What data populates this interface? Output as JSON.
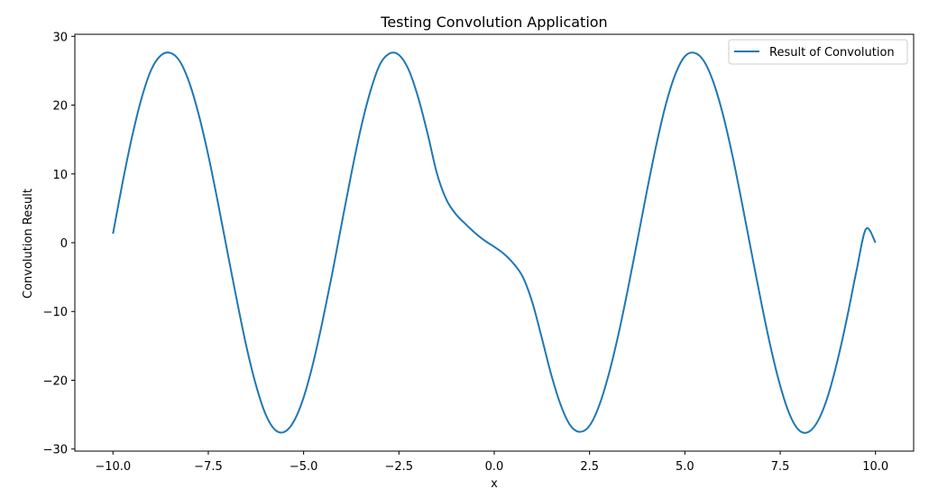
{
  "chart_data": {
    "type": "line",
    "title": "Testing Convolution Application",
    "xlabel": "x",
    "ylabel": "Convolution Result",
    "xlim": [
      -11,
      11
    ],
    "ylim": [
      -30.3,
      30.3
    ],
    "xticks": [
      -10.0,
      -7.5,
      -5.0,
      -2.5,
      0.0,
      2.5,
      5.0,
      7.5,
      10.0
    ],
    "xtick_labels": [
      "−10.0",
      "−7.5",
      "−5.0",
      "−2.5",
      "0.0",
      "2.5",
      "5.0",
      "7.5",
      "10.0"
    ],
    "yticks": [
      30,
      20,
      10,
      0,
      -10,
      -20,
      -30
    ],
    "ytick_labels": [
      "30",
      "20",
      "10",
      "0",
      "−10",
      "−20",
      "−30"
    ],
    "grid": false,
    "legend": {
      "position": "upper-right",
      "entries": [
        "Result of Convolution"
      ]
    },
    "series": [
      {
        "name": "Result of Convolution",
        "color": "#1f77b4",
        "x": [
          -10.0,
          -9.75,
          -9.5,
          -9.25,
          -9.0,
          -8.75,
          -8.5,
          -8.25,
          -8.0,
          -7.75,
          -7.5,
          -7.25,
          -7.0,
          -6.75,
          -6.5,
          -6.25,
          -6.0,
          -5.75,
          -5.5,
          -5.25,
          -5.0,
          -4.75,
          -4.5,
          -4.25,
          -4.0,
          -3.75,
          -3.5,
          -3.25,
          -3.0,
          -2.75,
          -2.5,
          -2.25,
          -2.0,
          -1.75,
          -1.5,
          -1.25,
          -1.0,
          -0.75,
          -0.5,
          -0.25,
          0.0,
          0.25,
          0.5,
          0.75,
          1.0,
          1.25,
          1.5,
          1.75,
          2.0,
          2.25,
          2.5,
          2.75,
          3.0,
          3.25,
          3.5,
          3.75,
          4.0,
          4.25,
          4.5,
          4.75,
          5.0,
          5.25,
          5.5,
          5.75,
          6.0,
          6.25,
          6.5,
          6.75,
          7.0,
          7.25,
          7.5,
          7.75,
          8.0,
          8.25,
          8.5,
          8.75,
          9.0,
          9.25,
          9.5,
          9.75,
          10.0
        ],
        "y": [
          1.3,
          8.7,
          15.4,
          21.0,
          25.1,
          27.2,
          27.6,
          26.4,
          23.3,
          18.6,
          12.7,
          5.9,
          -1.3,
          -8.4,
          -15.1,
          -20.7,
          -24.9,
          -27.2,
          -27.5,
          -25.9,
          -22.5,
          -17.5,
          -11.3,
          -4.5,
          2.8,
          10.0,
          16.6,
          22.0,
          25.9,
          27.5,
          27.3,
          25.2,
          21.2,
          15.9,
          10.0,
          6.2,
          4.1,
          2.7,
          1.4,
          0.3,
          -0.6,
          -1.6,
          -3.0,
          -5.0,
          -8.7,
          -13.9,
          -19.3,
          -23.7,
          -26.6,
          -27.5,
          -26.6,
          -23.7,
          -19.2,
          -13.5,
          -6.9,
          0.2,
          7.4,
          14.2,
          20.1,
          24.5,
          27.1,
          27.6,
          26.4,
          23.3,
          18.6,
          12.6,
          5.7,
          -1.5,
          -8.6,
          -15.2,
          -20.8,
          -25.0,
          -27.3,
          -27.5,
          -25.8,
          -22.3,
          -17.2,
          -11.0,
          -4.1,
          2.0,
          0.0
        ]
      }
    ]
  }
}
